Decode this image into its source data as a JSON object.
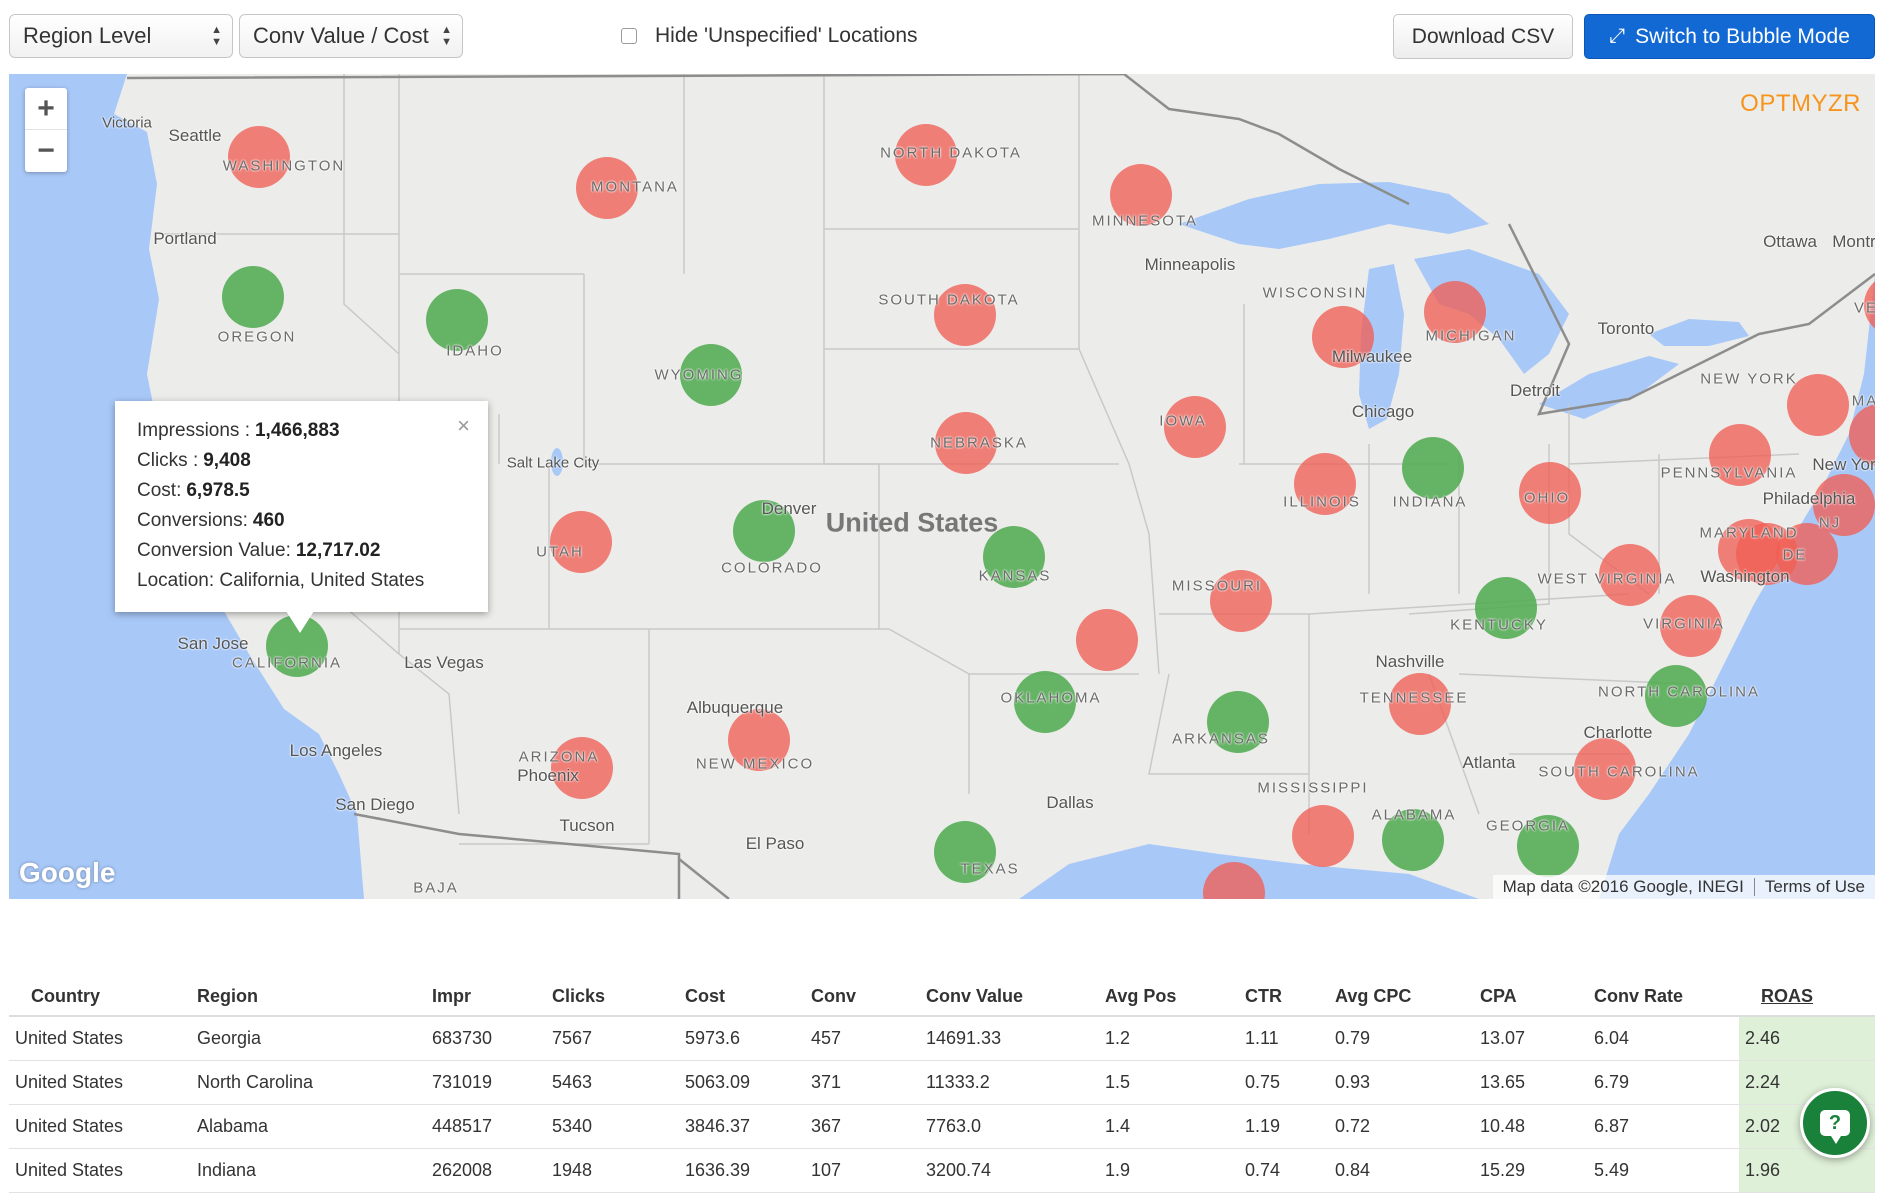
{
  "toolbar": {
    "level_select": "Region Level",
    "metric_select": "Conv Value / Cost",
    "hide_unspecified_label": "Hide 'Unspecified' Locations",
    "hide_unspecified_checked": false,
    "download_csv": "Download CSV",
    "bubble_mode": "Switch to Bubble Mode"
  },
  "map": {
    "brand": "OPTMYZR",
    "country_label": "United States",
    "google_logo": "Google",
    "map_data": "Map data ©2016 Google, INEGI",
    "terms": "Terms of Use",
    "zoom_in": "+",
    "zoom_out": "−",
    "colors": {
      "red": "#f05f55",
      "green": "#4eaa4e",
      "water": "#a8c8f8",
      "land": "#ececea"
    },
    "states": {
      "washington": "WASHINGTON",
      "oregon": "OREGON",
      "california": "CALIFORNIA",
      "idaho": "IDAHO",
      "montana": "MONTANA",
      "wyoming": "WYOMING",
      "utah": "UTAH",
      "colorado": "COLORADO",
      "arizona": "ARIZONA",
      "new_mexico": "NEW MEXICO",
      "north_dakota": "NORTH DAKOTA",
      "south_dakota": "SOUTH DAKOTA",
      "nebraska": "NEBRASKA",
      "kansas": "KANSAS",
      "oklahoma": "OKLAHOMA",
      "texas": "TEXAS",
      "minnesota": "MINNESOTA",
      "iowa": "IOWA",
      "missouri": "MISSOURI",
      "arkansas": "ARKANSAS",
      "mississippi": "MISSISSIPPI",
      "wisconsin": "WISCONSIN",
      "illinois": "ILLINOIS",
      "michigan": "MICHIGAN",
      "indiana": "INDIANA",
      "ohio": "OHIO",
      "kentucky": "KENTUCKY",
      "tennessee": "TENNESSEE",
      "alabama": "ALABAMA",
      "georgia": "GEORGIA",
      "west_virginia": "WEST VIRGINIA",
      "virginia": "VIRGINIA",
      "north_carolina": "NORTH CAROLINA",
      "south_carolina": "SOUTH CAROLINA",
      "pennsylvania": "PENNSYLVANIA",
      "new_york": "NEW YORK",
      "maryland": "MARYLAND",
      "de": "DE",
      "nj": "NJ",
      "baja": "BAJA",
      "ma": "MA",
      "ve": "VE"
    },
    "cities": {
      "victoria": "Victoria",
      "seattle": "Seattle",
      "portland": "Portland",
      "san_jose": "San Jose",
      "las_vegas": "Las Vegas",
      "los_angeles": "Los Angeles",
      "san_diego": "San Diego",
      "phoenix": "Phoenix",
      "tucson": "Tucson",
      "salt_lake_city": "Salt Lake City",
      "denver": "Denver",
      "albuquerque": "Albuquerque",
      "el_paso": "El Paso",
      "dallas": "Dallas",
      "minneapolis": "Minneapolis",
      "milwaukee": "Milwaukee",
      "chicago": "Chicago",
      "detroit": "Detroit",
      "toronto": "Toronto",
      "ottawa": "Ottawa",
      "montreal": "Montr",
      "nashville": "Nashville",
      "atlanta": "Atlanta",
      "charlotte": "Charlotte",
      "washington_dc": "Washington",
      "philadelphia": "Philadelphia",
      "new_york_city": "New Yor"
    },
    "info_window": {
      "impressions_label": "Impressions :",
      "impressions": "1,466,883",
      "clicks_label": "Clicks :",
      "clicks": "9,408",
      "cost_label": "Cost:",
      "cost": "6,978.5",
      "conversions_label": "Conversions:",
      "conversions": "460",
      "conv_value_label": "Conversion Value:",
      "conv_value": "12,717.02",
      "location_label": "Location: California, United States",
      "close": "×"
    }
  },
  "table": {
    "headers": [
      "Country",
      "Region",
      "Impr",
      "Clicks",
      "Cost",
      "Conv",
      "Conv Value",
      "Avg Pos",
      "CTR",
      "Avg CPC",
      "CPA",
      "Conv Rate",
      "ROAS"
    ],
    "rows": [
      [
        "United States",
        "Georgia",
        "683730",
        "7567",
        "5973.6",
        "457",
        "14691.33",
        "1.2",
        "1.11",
        "0.79",
        "13.07",
        "6.04",
        "2.46"
      ],
      [
        "United States",
        "North Carolina",
        "731019",
        "5463",
        "5063.09",
        "371",
        "11333.2",
        "1.5",
        "0.75",
        "0.93",
        "13.65",
        "6.79",
        "2.24"
      ],
      [
        "United States",
        "Alabama",
        "448517",
        "5340",
        "3846.37",
        "367",
        "7763.0",
        "1.4",
        "1.19",
        "0.72",
        "10.48",
        "6.87",
        "2.02"
      ],
      [
        "United States",
        "Indiana",
        "262008",
        "1948",
        "1636.39",
        "107",
        "3200.74",
        "1.9",
        "0.74",
        "0.84",
        "15.29",
        "5.49",
        "1.96"
      ]
    ]
  },
  "help_button": "?"
}
